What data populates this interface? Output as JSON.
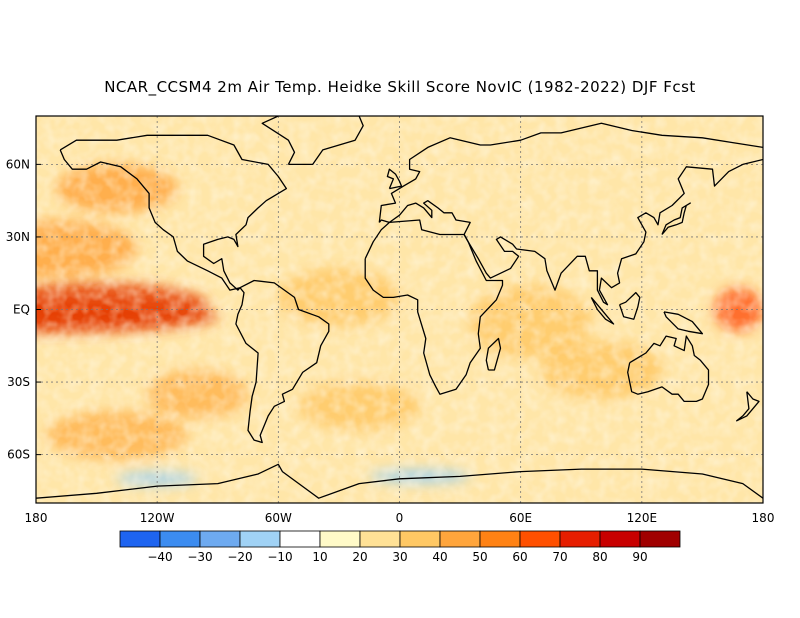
{
  "title": "NCAR_CCSM4 2m Air Temp. Heidke Skill Score NovIC (1982-2022) DJF Fcst",
  "map": {
    "projection": "equirectangular",
    "lon_range": [
      -180,
      180
    ],
    "lat_range": [
      -80,
      80
    ],
    "grid": true,
    "lat_labels": [
      "60N",
      "30N",
      "EQ",
      "30S",
      "60S"
    ],
    "lat_values": [
      60,
      30,
      0,
      -30,
      -60
    ],
    "lon_labels": [
      "180",
      "120W",
      "60W",
      "0",
      "60E",
      "120E",
      "180"
    ],
    "lon_values": [
      -180,
      -120,
      -60,
      0,
      60,
      120,
      180
    ]
  },
  "colorbar": {
    "labels": [
      "-40",
      "-30",
      "-20",
      "-10",
      "10",
      "20",
      "30",
      "40",
      "50",
      "60",
      "70",
      "80",
      "90"
    ],
    "colors": [
      "#1e64f0",
      "#3c8cf0",
      "#6eaaf0",
      "#a0d2f5",
      "#ffffff",
      "#fffac8",
      "#ffe196",
      "#ffc864",
      "#ffa53c",
      "#ff8214",
      "#ff5000",
      "#e61e00",
      "#c80000",
      "#a00000"
    ]
  },
  "skill_regions": [
    {
      "name": "equatorial-east-pacific",
      "level": 70,
      "color": "#e63c00"
    },
    {
      "name": "west-pacific-warm-pool",
      "level": 60,
      "color": "#ff5a14"
    },
    {
      "name": "north-pacific",
      "level": 40,
      "color": "#ffa53c"
    },
    {
      "name": "south-pacific",
      "level": 40,
      "color": "#ffb450"
    },
    {
      "name": "atlantic-tropical",
      "level": 30,
      "color": "#ffc864"
    },
    {
      "name": "indian-ocean",
      "level": 30,
      "color": "#ffc864"
    },
    {
      "name": "southern-ocean-ice-edge",
      "level": -10,
      "color": "#a0d2f5"
    }
  ]
}
